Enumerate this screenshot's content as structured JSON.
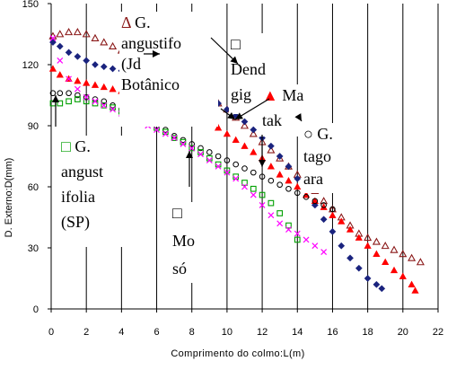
{
  "chart_data": {
    "type": "scatter",
    "xlabel": "Comprimento do colmo:L(m)",
    "ylabel": "D. Externo:D(mm)",
    "xlim": [
      0,
      22
    ],
    "ylim": [
      0,
      150
    ],
    "x_ticks": [
      0,
      2,
      4,
      6,
      8,
      10,
      12,
      14,
      16,
      18,
      20,
      22
    ],
    "y_ticks": [
      0,
      30,
      60,
      90,
      120,
      150
    ],
    "y_tick_labels": [
      "0",
      "30",
      "60",
      "90",
      "120",
      "150"
    ],
    "grid": {
      "vertical": true,
      "horizontal": false
    },
    "series": [
      {
        "name": "G. angustifolia (Jd. Botânico)",
        "marker": "triangle-open",
        "color": "#8b1a1a",
        "x": [
          0.1,
          0.5,
          1.0,
          1.5,
          2.0,
          2.5,
          3.0,
          3.5,
          4.0,
          4.5,
          5.0,
          5.5,
          6.0,
          6.5,
          7.0,
          7.5,
          8.0,
          8.5,
          9.0,
          9.5,
          10.0,
          10.5,
          11.0,
          11.5,
          12.0,
          12.5,
          13.0,
          13.5,
          14.0,
          14.5,
          15.0,
          15.5,
          16.0,
          16.5,
          17.0,
          17.5,
          18.0,
          18.5,
          19.0,
          19.5,
          20.0,
          20.5,
          21.0
        ],
        "y": [
          134,
          135,
          136,
          136,
          135,
          133,
          131,
          129,
          127,
          125,
          123,
          120,
          118,
          116,
          114,
          112,
          110,
          107,
          104,
          101,
          98,
          94,
          90,
          86,
          82,
          78,
          74,
          70,
          66,
          62,
          58,
          53,
          49,
          45,
          41,
          37,
          35,
          33,
          31,
          29,
          27,
          25,
          23
        ]
      },
      {
        "name": "Dendrocalamus giganteus",
        "marker": "diamond",
        "color": "#1a237e",
        "x": [
          0.1,
          0.5,
          1.0,
          1.5,
          2.0,
          2.5,
          3.0,
          3.5,
          4.0,
          4.5,
          5.0,
          5.5,
          6.0,
          6.5,
          7.0,
          7.5,
          8.0,
          8.5,
          9.0,
          9.5,
          10.0,
          10.5,
          11.0,
          11.5,
          12.0,
          12.5,
          13.0,
          13.5,
          14.0,
          14.5,
          15.0,
          15.5,
          16.0,
          16.5,
          17.0,
          17.5,
          18.0,
          18.5,
          18.8
        ],
        "y": [
          131,
          129,
          126,
          124,
          122,
          120,
          119,
          118,
          117,
          116,
          115,
          114,
          113,
          112,
          111,
          110,
          108,
          106,
          104,
          101,
          98,
          95,
          92,
          88,
          84,
          80,
          75,
          70,
          64,
          58,
          51,
          44,
          38,
          31,
          25,
          20,
          15,
          12,
          10
        ]
      },
      {
        "name": "Matake",
        "marker": "triangle-filled",
        "color": "#ff0000",
        "x": [
          0.1,
          0.5,
          1.0,
          1.5,
          2.0,
          2.5,
          3.0,
          3.5,
          4.0,
          4.5,
          5.0,
          5.5,
          6.0,
          6.5,
          7.0,
          7.5,
          8.0,
          8.5,
          9.0,
          9.5,
          10.0,
          10.5,
          11.0,
          11.5,
          12.0,
          12.5,
          13.0,
          13.5,
          14.0,
          14.5,
          15.0,
          15.5,
          16.0,
          16.5,
          17.0,
          17.5,
          18.0,
          18.5,
          19.0,
          19.5,
          20.0,
          20.5,
          20.7
        ],
        "y": [
          118,
          115,
          113,
          112,
          111,
          110,
          109,
          108,
          107,
          106,
          105,
          104,
          103,
          101,
          99,
          97,
          95,
          93,
          91,
          89,
          86,
          83,
          80,
          77,
          74,
          70,
          66,
          63,
          60,
          56,
          53,
          50,
          46,
          43,
          39,
          35,
          31,
          27,
          23,
          19,
          16,
          12,
          9
        ]
      },
      {
        "name": "G. tagoara",
        "marker": "circle-open",
        "color": "#000000",
        "x": [
          0.1,
          0.5,
          1.0,
          1.5,
          2.0,
          2.5,
          3.0,
          3.5,
          4.0,
          4.5,
          5.0,
          5.5,
          6.0,
          6.5,
          7.0,
          7.5,
          8.0,
          8.5,
          9.0,
          9.5,
          10.0,
          10.5,
          11.0,
          11.5,
          12.0,
          12.5,
          13.0,
          13.5,
          14.0,
          14.5,
          15.0,
          15.5,
          16.0
        ],
        "y": [
          106,
          106,
          106,
          105,
          104,
          103,
          102,
          100,
          98,
          96,
          94,
          92,
          90,
          88,
          85,
          83,
          81,
          79,
          77,
          75,
          73,
          71,
          69,
          67,
          65,
          63,
          61,
          59,
          57,
          55,
          53,
          51,
          49
        ]
      },
      {
        "name": "G. angustifolia (SP)",
        "marker": "square-open",
        "color": "#00a000",
        "x": [
          0.1,
          0.5,
          1.0,
          1.5,
          2.0,
          2.5,
          3.0,
          3.5,
          4.0,
          4.5,
          5.0,
          5.5,
          6.0,
          6.5,
          7.0,
          7.5,
          8.0,
          8.5,
          9.0,
          9.5,
          10.0,
          10.5,
          11.0,
          11.5,
          12.0,
          12.5,
          13.0,
          13.5,
          14.0
        ],
        "y": [
          101,
          101,
          102,
          103,
          102,
          101,
          100,
          99,
          97,
          95,
          93,
          91,
          89,
          87,
          84,
          82,
          79,
          77,
          74,
          71,
          68,
          65,
          62,
          59,
          56,
          52,
          47,
          41,
          34
        ]
      },
      {
        "name": "Mosó",
        "marker": "x",
        "color": "#ff00ff",
        "x": [
          0.1,
          0.5,
          1.0,
          1.5,
          2.0,
          2.5,
          3.0,
          3.5,
          4.0,
          4.5,
          5.0,
          5.5,
          6.0,
          6.5,
          7.0,
          7.5,
          8.0,
          8.5,
          9.0,
          9.5,
          10.0,
          10.5,
          11.0,
          11.5,
          12.0,
          12.5,
          13.0,
          13.5,
          14.0,
          14.5,
          15.0,
          15.5
        ],
        "y": [
          133,
          122,
          113,
          108,
          104,
          102,
          100,
          98,
          96,
          94,
          92,
          90,
          88,
          86,
          84,
          81,
          79,
          76,
          73,
          70,
          67,
          64,
          60,
          56,
          51,
          46,
          42,
          39,
          37,
          34,
          31,
          28
        ]
      }
    ],
    "annotations": [
      {
        "lines": [
          "Δ G.",
          "angustifo",
          "(Jd",
          "Botânico"
        ]
      },
      {
        "lines": [
          "□",
          "Dend",
          "gig"
        ]
      },
      {
        "lines": [
          "▲ Ma",
          "tak"
        ]
      },
      {
        "lines": [
          "○ G.",
          "tago",
          "ara"
        ]
      },
      {
        "lines": [
          "□ G.",
          "angust",
          "ifolia",
          "(SP)"
        ]
      },
      {
        "lines": [
          "□",
          "Mo",
          "só"
        ]
      }
    ]
  }
}
